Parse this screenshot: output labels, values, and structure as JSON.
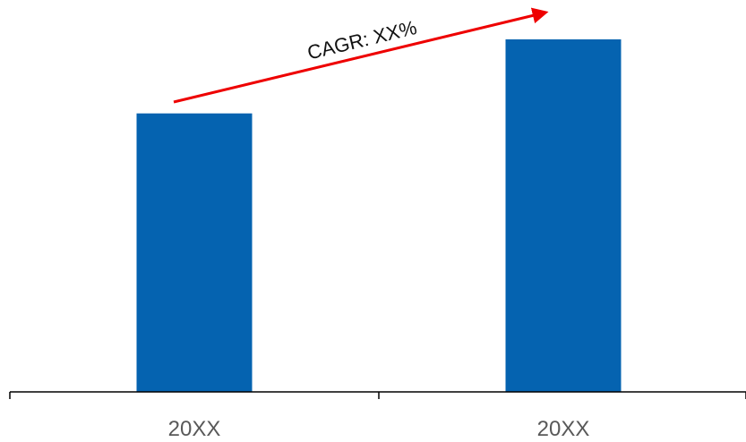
{
  "chart_data": {
    "type": "bar",
    "categories": [
      "20XX",
      "20XX"
    ],
    "values": [
      79,
      100
    ],
    "ylim": [
      0,
      100
    ],
    "grid": false,
    "legend": "none",
    "title": "",
    "xlabel": "",
    "ylabel": "",
    "annotation": {
      "text": "CAGR: XX%",
      "arrow": "from first bar top to second bar top, rising"
    }
  },
  "colors": {
    "bar": "#0563B0",
    "axis": "#000000",
    "arrow": "#EE0000",
    "tick_text": "#595959",
    "annotation_text": "#111111"
  }
}
